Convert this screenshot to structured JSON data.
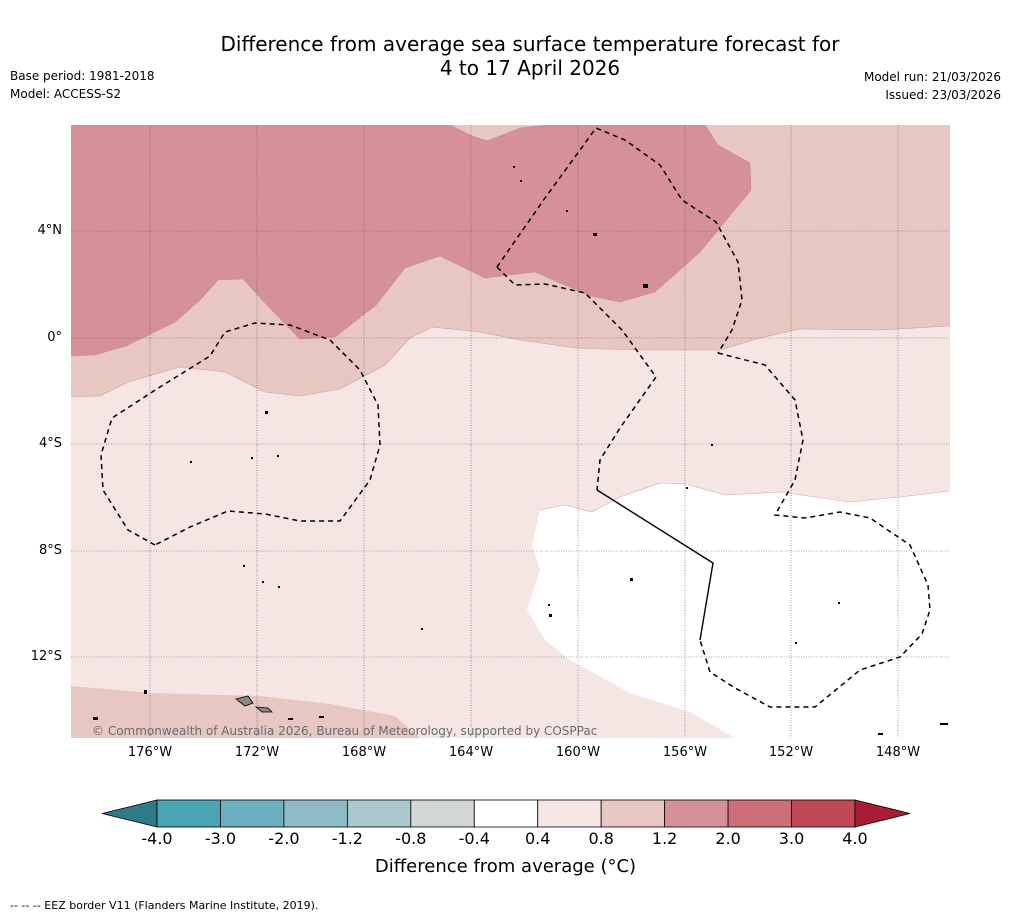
{
  "title_line1": "Difference from average sea surface temperature forecast for",
  "title_line2": "4 to 17 April 2026",
  "base_period": "Base period: 1981-2018",
  "model": "Model: ACCESS-S2",
  "model_run": "Model run: 21/03/2026",
  "issued": "Issued: 23/03/2026",
  "lat_labels": [
    "4°N",
    "0°",
    "4°S",
    "8°S",
    "12°S"
  ],
  "lon_labels": [
    "176°W",
    "172°W",
    "168°W",
    "164°W",
    "160°W",
    "156°W",
    "152°W",
    "148°W"
  ],
  "copyright": "© Commonwealth of Australia 2026, Bureau of Meteorology, supported by COSPPac",
  "colorbar": {
    "ticks": [
      "-4.0",
      "-3.0",
      "-2.0",
      "-1.2",
      "-0.8",
      "-0.4",
      "0.4",
      "0.8",
      "1.2",
      "2.0",
      "3.0",
      "4.0"
    ],
    "colors": [
      "#4aa4b4",
      "#6cb0bf",
      "#8fbbc6",
      "#abc9ce",
      "#d2d6d6",
      "#ffffff",
      "#f5e6e4",
      "#e8c6c2",
      "#d69097",
      "#cc6f79",
      "#c04856"
    ],
    "under_color": "#2e7a86",
    "over_color": "#a81c37",
    "label": "Difference from average (°C)"
  },
  "footer": "-- -- -- EEZ border V11 (Flanders Marine Institute, 2019)."
}
